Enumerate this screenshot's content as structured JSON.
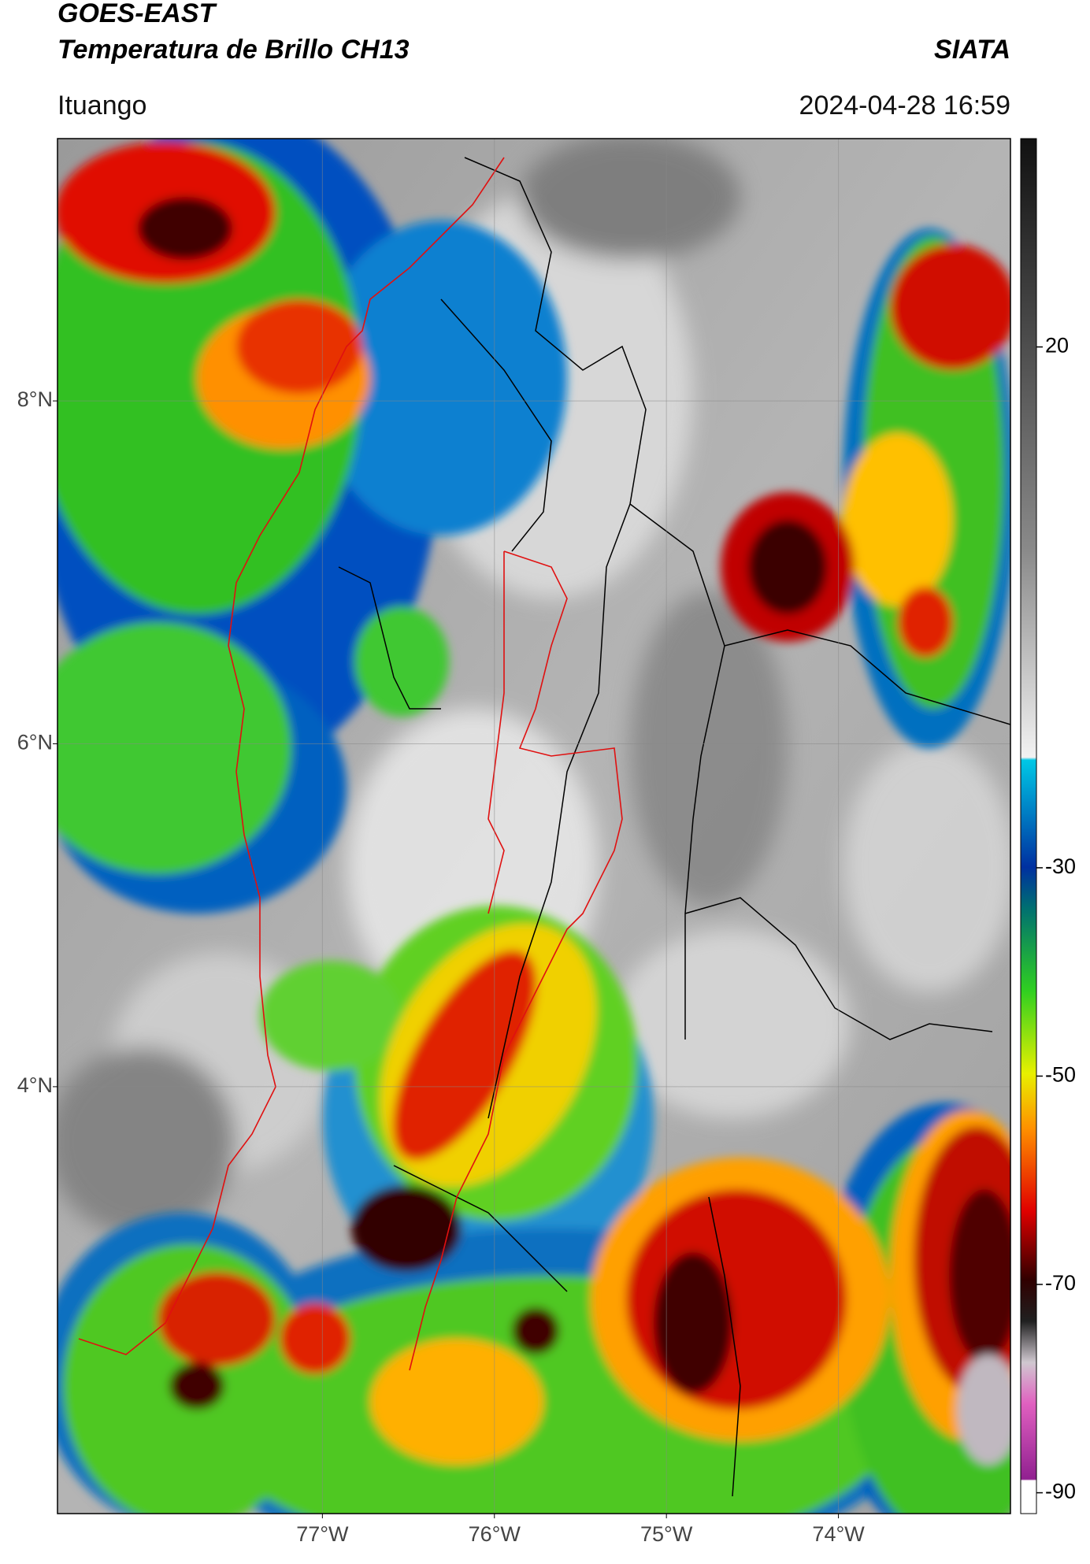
{
  "header": {
    "title_line1": "GOES-EAST",
    "title_line2": "Temperatura de Brillo CH13",
    "agency": "SIATA",
    "location": "Ituango",
    "datetime": "2024-04-28 16:59"
  },
  "map": {
    "xlim": [
      -78.54,
      -73.0
    ],
    "ylim": [
      1.51,
      9.53
    ],
    "xticks": [
      {
        "value": -77,
        "label": "77°W"
      },
      {
        "value": -76,
        "label": "76°W"
      },
      {
        "value": -75,
        "label": "75°W"
      },
      {
        "value": -74,
        "label": "74°W"
      }
    ],
    "yticks": [
      {
        "value": 8,
        "label": "8°N"
      },
      {
        "value": 6,
        "label": "6°N"
      },
      {
        "value": 4,
        "label": "4°N"
      }
    ],
    "grid": true
  },
  "colorbar": {
    "lim": [
      -92,
      40
    ],
    "ticks": [
      20,
      -30,
      -50,
      -70,
      -90
    ]
  }
}
